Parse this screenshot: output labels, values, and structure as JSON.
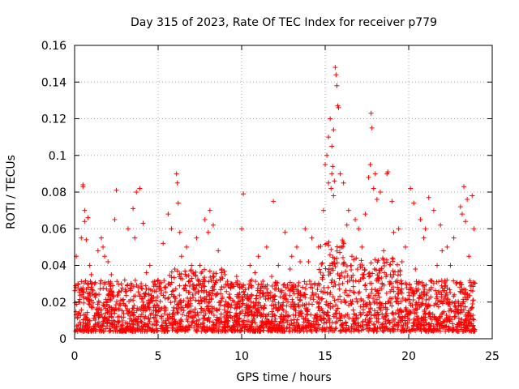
{
  "chart_data": {
    "type": "scatter",
    "title": "Day 315 of 2023, Rate Of TEC Index for receiver p779",
    "xlabel": "GPS time / hours",
    "ylabel": "ROTI / TECUs",
    "xlim": [
      0,
      25
    ],
    "ylim": [
      0,
      0.16
    ],
    "grid": true,
    "xticks": [
      0,
      5,
      10,
      15,
      20,
      25
    ],
    "yticks": [
      0,
      0.02,
      0.04,
      0.06,
      0.08,
      0.1,
      0.12,
      0.14,
      0.16
    ],
    "xtick_labels": [
      "0",
      "5",
      "10",
      "15",
      "20",
      "25"
    ],
    "ytick_labels": [
      "0",
      "0.02",
      "0.04",
      "0.06",
      "0.08",
      "0.1",
      "0.12",
      "0.14",
      "0.16"
    ],
    "series": [
      {
        "name": "ROTI",
        "color": "#ff0000",
        "marker": "+",
        "points": [
          [
            0.1,
            0.045
          ],
          [
            0.3,
            0.02
          ],
          [
            0.5,
            0.084
          ],
          [
            0.5,
            0.083
          ],
          [
            0.6,
            0.07
          ],
          [
            0.6,
            0.064
          ],
          [
            0.7,
            0.054
          ],
          [
            0.8,
            0.066
          ],
          [
            0.9,
            0.04
          ],
          [
            1.2,
            0.03
          ],
          [
            1.6,
            0.055
          ],
          [
            1.7,
            0.05
          ],
          [
            1.8,
            0.045
          ],
          [
            2.0,
            0.042
          ],
          [
            2.5,
            0.081
          ],
          [
            2.4,
            0.065
          ],
          [
            2.8,
            0.03
          ],
          [
            3.2,
            0.06
          ],
          [
            3.5,
            0.071
          ],
          [
            3.7,
            0.08
          ],
          [
            3.9,
            0.082
          ],
          [
            4.1,
            0.063
          ],
          [
            4.5,
            0.04
          ],
          [
            4.8,
            0.03
          ],
          [
            5.3,
            0.052
          ],
          [
            5.6,
            0.068
          ],
          [
            5.8,
            0.06
          ],
          [
            6.1,
            0.09
          ],
          [
            6.15,
            0.085
          ],
          [
            6.2,
            0.074
          ],
          [
            6.4,
            0.045
          ],
          [
            6.7,
            0.05
          ],
          [
            7.0,
            0.04
          ],
          [
            7.3,
            0.055
          ],
          [
            7.8,
            0.065
          ],
          [
            8.1,
            0.07
          ],
          [
            8.3,
            0.062
          ],
          [
            8.6,
            0.048
          ],
          [
            9.0,
            0.035
          ],
          [
            9.4,
            0.03
          ],
          [
            10.0,
            0.06
          ],
          [
            10.1,
            0.079
          ],
          [
            10.5,
            0.04
          ],
          [
            11.0,
            0.045
          ],
          [
            11.5,
            0.05
          ],
          [
            11.9,
            0.075
          ],
          [
            12.2,
            0.04
          ],
          [
            12.6,
            0.058
          ],
          [
            13.0,
            0.045
          ],
          [
            13.3,
            0.05
          ],
          [
            13.8,
            0.06
          ],
          [
            14.2,
            0.055
          ],
          [
            14.6,
            0.05
          ],
          [
            14.9,
            0.07
          ],
          [
            15.0,
            0.095
          ],
          [
            15.1,
            0.1
          ],
          [
            15.2,
            0.11
          ],
          [
            15.3,
            0.12
          ],
          [
            15.4,
            0.105
          ],
          [
            15.5,
            0.114
          ],
          [
            15.6,
            0.148
          ],
          [
            15.65,
            0.144
          ],
          [
            15.7,
            0.138
          ],
          [
            15.75,
            0.127
          ],
          [
            15.8,
            0.126
          ],
          [
            15.9,
            0.09
          ],
          [
            16.1,
            0.085
          ],
          [
            16.4,
            0.07
          ],
          [
            16.8,
            0.065
          ],
          [
            17.0,
            0.06
          ],
          [
            17.4,
            0.068
          ],
          [
            17.7,
            0.095
          ],
          [
            17.75,
            0.123
          ],
          [
            17.8,
            0.115
          ],
          [
            18.0,
            0.09
          ],
          [
            18.3,
            0.08
          ],
          [
            18.7,
            0.09
          ],
          [
            18.75,
            0.091
          ],
          [
            19.0,
            0.075
          ],
          [
            19.4,
            0.06
          ],
          [
            19.8,
            0.05
          ],
          [
            20.1,
            0.082
          ],
          [
            20.3,
            0.074
          ],
          [
            20.7,
            0.065
          ],
          [
            21.0,
            0.06
          ],
          [
            21.2,
            0.077
          ],
          [
            21.5,
            0.07
          ],
          [
            21.9,
            0.062
          ],
          [
            22.3,
            0.05
          ],
          [
            22.7,
            0.055
          ],
          [
            23.1,
            0.072
          ],
          [
            23.3,
            0.083
          ],
          [
            23.5,
            0.076
          ],
          [
            23.8,
            0.078
          ],
          [
            23.9,
            0.06
          ],
          [
            0.2,
            0.03
          ],
          [
            1.0,
            0.035
          ],
          [
            2.2,
            0.035
          ],
          [
            3.0,
            0.032
          ],
          [
            4.3,
            0.036
          ],
          [
            5.0,
            0.032
          ],
          [
            6.0,
            0.038
          ],
          [
            7.5,
            0.04
          ],
          [
            8.8,
            0.038
          ],
          [
            9.7,
            0.034
          ],
          [
            10.8,
            0.036
          ],
          [
            11.8,
            0.034
          ],
          [
            12.9,
            0.038
          ],
          [
            14.0,
            0.042
          ],
          [
            16.0,
            0.05
          ],
          [
            16.6,
            0.045
          ],
          [
            17.2,
            0.05
          ],
          [
            18.5,
            0.048
          ],
          [
            19.6,
            0.042
          ],
          [
            20.4,
            0.038
          ],
          [
            21.7,
            0.04
          ],
          [
            22.5,
            0.04
          ],
          [
            23.6,
            0.045
          ],
          [
            15.2,
            0.085
          ],
          [
            15.4,
            0.09
          ],
          [
            15.45,
            0.094
          ],
          [
            15.55,
            0.086
          ],
          [
            15.5,
            0.078
          ],
          [
            15.35,
            0.082
          ],
          [
            17.6,
            0.088
          ],
          [
            17.9,
            0.082
          ],
          [
            18.1,
            0.076
          ],
          [
            23.2,
            0.068
          ],
          [
            23.4,
            0.064
          ],
          [
            6.3,
            0.058
          ],
          [
            8.0,
            0.058
          ],
          [
            3.6,
            0.055
          ],
          [
            1.4,
            0.048
          ],
          [
            0.4,
            0.055
          ],
          [
            12.0,
            0.03
          ],
          [
            13.5,
            0.042
          ],
          [
            22.0,
            0.048
          ],
          [
            20.9,
            0.055
          ],
          [
            19.1,
            0.058
          ],
          [
            16.3,
            0.062
          ]
        ]
      }
    ]
  }
}
